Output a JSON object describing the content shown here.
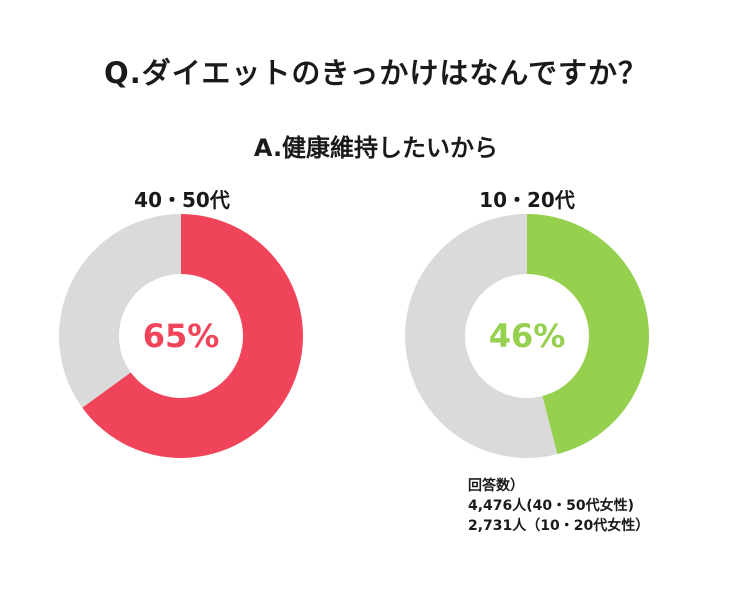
{
  "question": "Q.ダイエットのきっかけはなんですか？",
  "answer": "A.健康維持したいから",
  "colors": {
    "track": "#dadada",
    "left_accent": "#ef4459",
    "right_accent": "#95d04f"
  },
  "chart_data": [
    {
      "type": "pie",
      "label": "40・50代",
      "value": 65,
      "display": "65%"
    },
    {
      "type": "pie",
      "label": "10・20代",
      "value": 46,
      "display": "46%"
    }
  ],
  "notes": [
    "回答数）",
    "4,476人(40・50代女性)",
    "2,731人（10・20代女性）"
  ]
}
